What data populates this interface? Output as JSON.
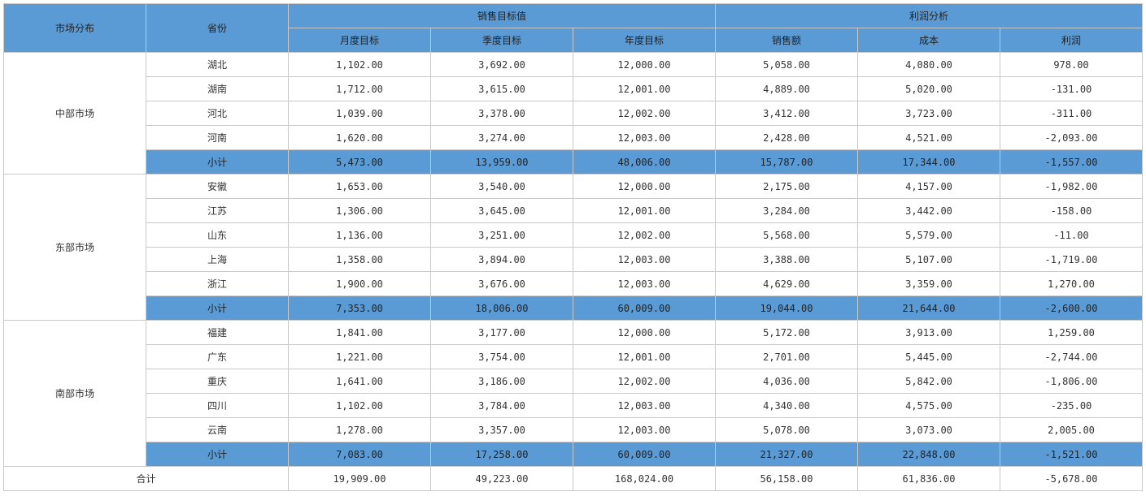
{
  "colors": {
    "header_bg": "#5b9bd5",
    "border": "#c9c9c9",
    "text": "#333333",
    "bg": "#ffffff"
  },
  "header": {
    "market": "市场分布",
    "province": "省份",
    "sales_target_group": "销售目标值",
    "profit_group": "利润分析",
    "month_target": "月度目标",
    "quarter_target": "季度目标",
    "year_target": "年度目标",
    "sales": "销售额",
    "cost": "成本",
    "profit": "利润"
  },
  "labels": {
    "subtotal": "小计",
    "total": "合计"
  },
  "groups": [
    {
      "market": "中部市场",
      "rows": [
        {
          "province": "湖北",
          "month": "1,102.00",
          "quarter": "3,692.00",
          "year": "12,000.00",
          "sales": "5,058.00",
          "cost": "4,080.00",
          "profit": "978.00"
        },
        {
          "province": "湖南",
          "month": "1,712.00",
          "quarter": "3,615.00",
          "year": "12,001.00",
          "sales": "4,889.00",
          "cost": "5,020.00",
          "profit": "-131.00"
        },
        {
          "province": "河北",
          "month": "1,039.00",
          "quarter": "3,378.00",
          "year": "12,002.00",
          "sales": "3,412.00",
          "cost": "3,723.00",
          "profit": "-311.00"
        },
        {
          "province": "河南",
          "month": "1,620.00",
          "quarter": "3,274.00",
          "year": "12,003.00",
          "sales": "2,428.00",
          "cost": "4,521.00",
          "profit": "-2,093.00"
        }
      ],
      "subtotal": {
        "month": "5,473.00",
        "quarter": "13,959.00",
        "year": "48,006.00",
        "sales": "15,787.00",
        "cost": "17,344.00",
        "profit": "-1,557.00"
      }
    },
    {
      "market": "东部市场",
      "rows": [
        {
          "province": "安徽",
          "month": "1,653.00",
          "quarter": "3,540.00",
          "year": "12,000.00",
          "sales": "2,175.00",
          "cost": "4,157.00",
          "profit": "-1,982.00"
        },
        {
          "province": "江苏",
          "month": "1,306.00",
          "quarter": "3,645.00",
          "year": "12,001.00",
          "sales": "3,284.00",
          "cost": "3,442.00",
          "profit": "-158.00"
        },
        {
          "province": "山东",
          "month": "1,136.00",
          "quarter": "3,251.00",
          "year": "12,002.00",
          "sales": "5,568.00",
          "cost": "5,579.00",
          "profit": "-11.00"
        },
        {
          "province": "上海",
          "month": "1,358.00",
          "quarter": "3,894.00",
          "year": "12,003.00",
          "sales": "3,388.00",
          "cost": "5,107.00",
          "profit": "-1,719.00"
        },
        {
          "province": "浙江",
          "month": "1,900.00",
          "quarter": "3,676.00",
          "year": "12,003.00",
          "sales": "4,629.00",
          "cost": "3,359.00",
          "profit": "1,270.00"
        }
      ],
      "subtotal": {
        "month": "7,353.00",
        "quarter": "18,006.00",
        "year": "60,009.00",
        "sales": "19,044.00",
        "cost": "21,644.00",
        "profit": "-2,600.00"
      }
    },
    {
      "market": "南部市场",
      "rows": [
        {
          "province": "福建",
          "month": "1,841.00",
          "quarter": "3,177.00",
          "year": "12,000.00",
          "sales": "5,172.00",
          "cost": "3,913.00",
          "profit": "1,259.00"
        },
        {
          "province": "广东",
          "month": "1,221.00",
          "quarter": "3,754.00",
          "year": "12,001.00",
          "sales": "2,701.00",
          "cost": "5,445.00",
          "profit": "-2,744.00"
        },
        {
          "province": "重庆",
          "month": "1,641.00",
          "quarter": "3,186.00",
          "year": "12,002.00",
          "sales": "4,036.00",
          "cost": "5,842.00",
          "profit": "-1,806.00"
        },
        {
          "province": "四川",
          "month": "1,102.00",
          "quarter": "3,784.00",
          "year": "12,003.00",
          "sales": "4,340.00",
          "cost": "4,575.00",
          "profit": "-235.00"
        },
        {
          "province": "云南",
          "month": "1,278.00",
          "quarter": "3,357.00",
          "year": "12,003.00",
          "sales": "5,078.00",
          "cost": "3,073.00",
          "profit": "2,005.00"
        }
      ],
      "subtotal": {
        "month": "7,083.00",
        "quarter": "17,258.00",
        "year": "60,009.00",
        "sales": "21,327.00",
        "cost": "22,848.00",
        "profit": "-1,521.00"
      }
    }
  ],
  "total": {
    "month": "19,909.00",
    "quarter": "49,223.00",
    "year": "168,024.00",
    "sales": "56,158.00",
    "cost": "61,836.00",
    "profit": "-5,678.00"
  }
}
